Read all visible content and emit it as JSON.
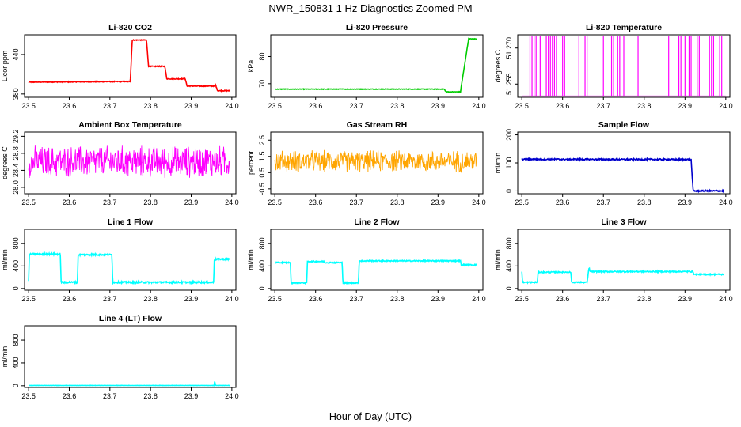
{
  "figure": {
    "title": "NWR_150831  1 Hz Diagnostics Zoomed PM",
    "xlabel": "Hour of Day (UTC)"
  },
  "chart_data": [
    {
      "type": "line",
      "title": "Li-820 CO2",
      "ylabel": "Licor ppm",
      "color": "#ff0000",
      "xlim": [
        23.5,
        24.0
      ],
      "ylim": [
        375,
        470
      ],
      "xticks": [
        "23.5",
        "23.6",
        "23.7",
        "23.8",
        "23.9",
        "24.0"
      ],
      "yticks": [
        {
          "v": 380,
          "label": "380"
        },
        {
          "v": 440,
          "label": "440"
        }
      ],
      "noise": 0.6,
      "series": [
        {
          "x": [
            23.5,
            23.75,
            23.755,
            23.79,
            23.795,
            23.835,
            23.84,
            23.885,
            23.89,
            23.958,
            23.96,
            23.963,
            23.965,
            23.995
          ],
          "y": [
            398,
            399,
            462,
            462,
            422,
            422,
            403,
            403,
            392,
            392,
            394,
            388,
            385,
            385
          ]
        }
      ]
    },
    {
      "type": "line",
      "title": "Li-820 Pressure",
      "ylabel": "kPa",
      "color": "#00cc00",
      "xlim": [
        23.5,
        24.0
      ],
      "ylim": [
        65,
        88
      ],
      "xticks": [
        "23.5",
        "23.6",
        "23.7",
        "23.8",
        "23.9",
        "24.0"
      ],
      "yticks": [
        {
          "v": 70,
          "label": "70"
        },
        {
          "v": 80,
          "label": "80"
        }
      ],
      "noise": 0.1,
      "series": [
        {
          "x": [
            23.5,
            23.915,
            23.92,
            23.955,
            23.975,
            23.995
          ],
          "y": [
            68,
            68,
            67,
            67,
            86.5,
            86.5
          ]
        }
      ]
    },
    {
      "type": "line",
      "title": "Li-820 Temperature",
      "ylabel": "degrees C",
      "color": "#ff00ff",
      "xlim": [
        23.5,
        24.0
      ],
      "ylim": [
        51.2495,
        51.2755
      ],
      "xticks": [
        "23.5",
        "23.6",
        "23.7",
        "23.8",
        "23.9",
        "24.0"
      ],
      "yticks": [
        {
          "v": 51.255,
          "label": "51.255"
        },
        {
          "v": 51.27,
          "label": "51.270"
        }
      ],
      "baseline": 51.25,
      "spike": 51.275,
      "spikes_x": [
        23.52,
        23.525,
        23.53,
        23.535,
        23.545,
        23.56,
        23.565,
        23.57,
        23.575,
        23.58,
        23.585,
        23.6,
        23.605,
        23.64,
        23.655,
        23.66,
        23.7,
        23.72,
        23.725,
        23.735,
        23.74,
        23.75,
        23.785,
        23.86,
        23.885,
        23.89,
        23.9,
        23.91,
        23.915,
        23.93,
        23.935,
        23.96,
        23.965,
        23.97,
        23.985,
        23.99
      ]
    },
    {
      "type": "line",
      "title": "Ambient Box Temperature",
      "ylabel": "degrees C",
      "color": "#ff00ff",
      "xlim": [
        23.5,
        24.0
      ],
      "ylim": [
        27.85,
        29.3
      ],
      "xticks": [
        "23.5",
        "23.6",
        "23.7",
        "23.8",
        "23.9",
        "24.0"
      ],
      "yticks": [
        {
          "v": 28.0,
          "label": "28.0"
        },
        {
          "v": 28.4,
          "label": "28.4"
        },
        {
          "v": 28.8,
          "label": "28.8"
        },
        {
          "v": 29.2,
          "label": "29.2"
        }
      ],
      "osc_center": 28.6,
      "osc_amp": 0.42,
      "series": [
        {
          "x": [
            23.5,
            23.995
          ],
          "y": [
            28.6,
            28.6
          ]
        }
      ]
    },
    {
      "type": "line",
      "title": "Gas Stream RH",
      "ylabel": "percent",
      "color": "#ffa500",
      "xlim": [
        23.5,
        24.0
      ],
      "ylim": [
        -0.8,
        3.0
      ],
      "xticks": [
        "23.5",
        "23.6",
        "23.7",
        "23.8",
        "23.9",
        "24.0"
      ],
      "yticks": [
        {
          "v": -0.5,
          "label": "-0.5"
        },
        {
          "v": 0.5,
          "label": "0.5"
        },
        {
          "v": 1.5,
          "label": "1.5"
        },
        {
          "v": 2.5,
          "label": "2.5"
        }
      ],
      "osc_center": 1.2,
      "osc_amp": 0.75,
      "series": [
        {
          "x": [
            23.5,
            23.995
          ],
          "y": [
            1.2,
            1.2
          ]
        }
      ]
    },
    {
      "type": "line",
      "title": "Sample Flow",
      "ylabel": "ml/min",
      "color": "#0000cc",
      "xlim": [
        23.5,
        24.0
      ],
      "ylim": [
        -10,
        210
      ],
      "xticks": [
        "23.5",
        "23.6",
        "23.7",
        "23.8",
        "23.9",
        "24.0"
      ],
      "yticks": [
        {
          "v": 0,
          "label": "0"
        },
        {
          "v": 100,
          "label": "100"
        },
        {
          "v": 200,
          "label": "200"
        }
      ],
      "noise": 2.5,
      "series": [
        {
          "x": [
            23.5,
            23.915,
            23.92,
            23.995
          ],
          "y": [
            113,
            112,
            0,
            0
          ]
        }
      ]
    },
    {
      "type": "line",
      "title": "Line 1 Flow",
      "ylabel": "ml/min",
      "color": "#00ffff",
      "xlim": [
        23.5,
        24.0
      ],
      "ylim": [
        -30,
        1050
      ],
      "xticks": [
        "23.5",
        "23.6",
        "23.7",
        "23.8",
        "23.9",
        "24.0"
      ],
      "yticks": [
        {
          "v": 0,
          "label": "0"
        },
        {
          "v": 400,
          "label": "400"
        },
        {
          "v": 800,
          "label": "800"
        }
      ],
      "noise": 14,
      "series": [
        {
          "x": [
            23.5,
            23.502,
            23.578,
            23.58,
            23.62,
            23.622,
            23.705,
            23.707,
            23.955,
            23.957,
            23.995
          ],
          "y": [
            130,
            610,
            610,
            110,
            110,
            600,
            600,
            110,
            110,
            520,
            520
          ]
        }
      ]
    },
    {
      "type": "line",
      "title": "Line 2 Flow",
      "ylabel": "ml/min",
      "color": "#00ffff",
      "xlim": [
        23.5,
        24.0
      ],
      "ylim": [
        -30,
        1050
      ],
      "xticks": [
        "23.5",
        "23.6",
        "23.7",
        "23.8",
        "23.9",
        "24.0"
      ],
      "yticks": [
        {
          "v": 0,
          "label": "0"
        },
        {
          "v": 400,
          "label": "400"
        },
        {
          "v": 800,
          "label": "800"
        }
      ],
      "noise": 10,
      "series": [
        {
          "x": [
            23.5,
            23.538,
            23.54,
            23.578,
            23.58,
            23.62,
            23.622,
            23.665,
            23.667,
            23.705,
            23.707,
            23.955,
            23.957,
            23.995
          ],
          "y": [
            460,
            460,
            100,
            100,
            480,
            480,
            460,
            460,
            100,
            100,
            490,
            490,
            420,
            420
          ]
        }
      ]
    },
    {
      "type": "line",
      "title": "Line 3 Flow",
      "ylabel": "ml/min",
      "color": "#00ffff",
      "xlim": [
        23.5,
        24.0
      ],
      "ylim": [
        -30,
        1050
      ],
      "xticks": [
        "23.5",
        "23.6",
        "23.7",
        "23.8",
        "23.9",
        "24.0"
      ],
      "yticks": [
        {
          "v": 0,
          "label": "0"
        },
        {
          "v": 400,
          "label": "400"
        },
        {
          "v": 800,
          "label": "800"
        }
      ],
      "noise": 10,
      "series": [
        {
          "x": [
            23.5,
            23.502,
            23.538,
            23.54,
            23.62,
            23.622,
            23.66,
            23.665,
            23.667,
            23.92,
            23.922,
            23.995
          ],
          "y": [
            300,
            110,
            110,
            290,
            290,
            110,
            110,
            380,
            300,
            300,
            250,
            250
          ]
        }
      ]
    },
    {
      "type": "line",
      "title": "Line 4 (LT) Flow",
      "ylabel": "ml/min",
      "color": "#00ffff",
      "xlim": [
        23.5,
        24.0
      ],
      "ylim": [
        -30,
        1050
      ],
      "xticks": [
        "23.5",
        "23.6",
        "23.7",
        "23.8",
        "23.9",
        "24.0"
      ],
      "yticks": [
        {
          "v": 0,
          "label": "0"
        },
        {
          "v": 400,
          "label": "400"
        },
        {
          "v": 800,
          "label": "800"
        }
      ],
      "noise": 2,
      "series": [
        {
          "x": [
            23.5,
            23.956,
            23.958,
            23.96,
            23.962,
            23.995
          ],
          "y": [
            5,
            5,
            80,
            5,
            5,
            5
          ]
        }
      ]
    }
  ]
}
